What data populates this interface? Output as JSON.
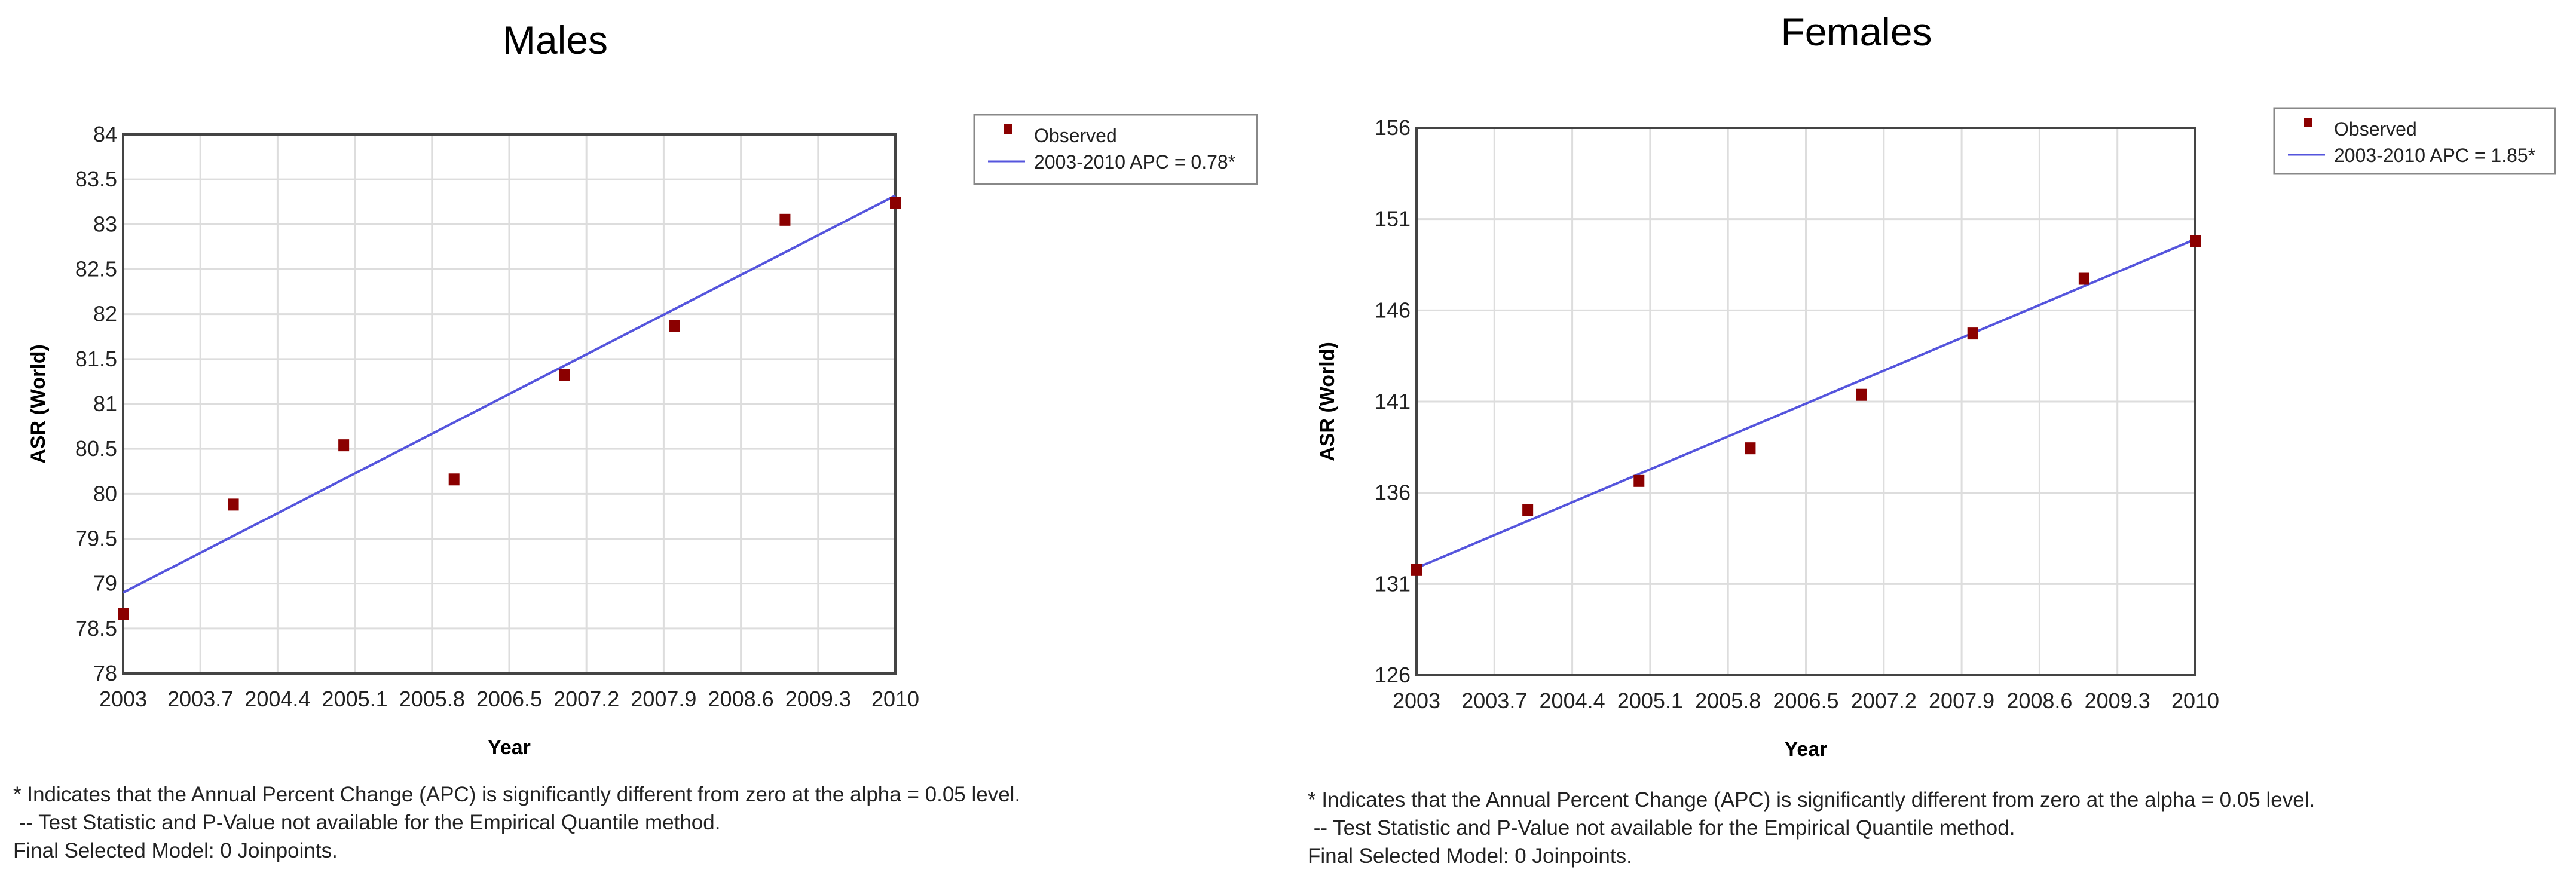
{
  "chart_data": [
    {
      "type": "scatter",
      "title": "Males",
      "xlabel": "Year",
      "ylabel": "ASR (World)",
      "xlim": [
        2003,
        2010
      ],
      "ylim": [
        78,
        84
      ],
      "xticks": [
        "2003",
        "2003.7",
        "2004.4",
        "2005.1",
        "2005.8",
        "2006.5",
        "2007.2",
        "2007.9",
        "2008.6",
        "2009.3",
        "2010"
      ],
      "yticks": [
        "78",
        "78.5",
        "79",
        "79.5",
        "80",
        "80.5",
        "81",
        "81.5",
        "82",
        "82.5",
        "83",
        "83.5",
        "84"
      ],
      "grid": true,
      "legend_placement": "right",
      "series": [
        {
          "name": "Observed",
          "kind": "points",
          "color": "#8b0000",
          "x": [
            2003,
            2004,
            2005,
            2006,
            2007,
            2008,
            2009,
            2010
          ],
          "y": [
            78.66,
            79.88,
            80.54,
            80.16,
            81.32,
            81.87,
            83.05,
            83.24
          ]
        },
        {
          "name": "2003-2010 APC  = 0.78*",
          "kind": "line",
          "color": "#5555dd",
          "x": [
            2003,
            2010
          ],
          "y": [
            78.9,
            83.32
          ]
        }
      ],
      "footnotes": [
        "* Indicates that the Annual Percent Change (APC) is significantly different from zero at the alpha = 0.05 level.",
        " -- Test Statistic and P-Value not available for the Empirical Quantile method.",
        "Final Selected Model: 0 Joinpoints."
      ]
    },
    {
      "type": "scatter",
      "title": "Females",
      "xlabel": "Year",
      "ylabel": "ASR (World)",
      "xlim": [
        2003,
        2010
      ],
      "ylim": [
        126,
        156
      ],
      "xticks": [
        "2003",
        "2003.7",
        "2004.4",
        "2005.1",
        "2005.8",
        "2006.5",
        "2007.2",
        "2007.9",
        "2008.6",
        "2009.3",
        "2010"
      ],
      "yticks": [
        "126",
        "131",
        "136",
        "141",
        "146",
        "151",
        "156"
      ],
      "grid": true,
      "legend_placement": "right",
      "series": [
        {
          "name": "Observed",
          "kind": "points",
          "color": "#8b0000",
          "x": [
            2003,
            2004,
            2005,
            2006,
            2007,
            2008,
            2009,
            2010
          ],
          "y": [
            131.77,
            135.04,
            136.65,
            138.44,
            141.37,
            144.73,
            147.73,
            149.81
          ]
        },
        {
          "name": "2003-2010 APC  = 1.85*",
          "kind": "line",
          "color": "#5555dd",
          "x": [
            2003,
            2010
          ],
          "y": [
            131.88,
            149.9
          ]
        }
      ],
      "footnotes": [
        "* Indicates that the Annual Percent Change (APC) is significantly different from zero at the alpha = 0.05 level.",
        " -- Test Statistic and P-Value not available for the Empirical Quantile method.",
        "Final Selected Model: 0 Joinpoints."
      ]
    }
  ]
}
